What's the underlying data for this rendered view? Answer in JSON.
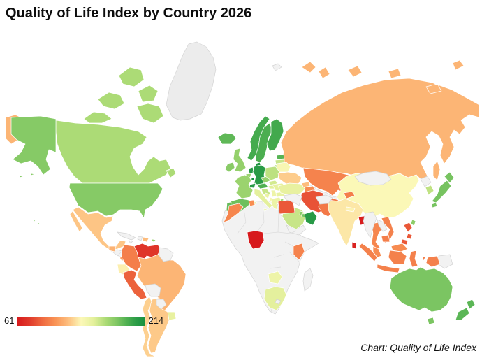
{
  "title": "Quality of Life Index by Country 2026",
  "caption": "Chart: Quality of Life Index",
  "legend": {
    "min_label": "61",
    "max_label": "214"
  },
  "chart_data": {
    "type": "choropleth",
    "title": "Quality of Life Index by Country 2026",
    "metric": "Quality of Life Index",
    "year": "2026",
    "legend_position": "bottom-left",
    "scale": {
      "min": 61,
      "max": 214,
      "no_data_color": "#f2f2f2",
      "no_data_border": "#d4d4d4",
      "stops": [
        {
          "t": 0.0,
          "color": "#d7191c"
        },
        {
          "t": 0.1,
          "color": "#e03a2b"
        },
        {
          "t": 0.2,
          "color": "#ef6a40"
        },
        {
          "t": 0.3,
          "color": "#f99355"
        },
        {
          "t": 0.4,
          "color": "#fdbe7e"
        },
        {
          "t": 0.5,
          "color": "#fcf8b8"
        },
        {
          "t": 0.6,
          "color": "#e3f09b"
        },
        {
          "t": 0.7,
          "color": "#a8d973"
        },
        {
          "t": 0.78,
          "color": "#7ec663"
        },
        {
          "t": 0.86,
          "color": "#4daf50"
        },
        {
          "t": 0.93,
          "color": "#2b9c47"
        },
        {
          "t": 1.0,
          "color": "#17903e"
        }
      ]
    },
    "countries": [
      {
        "id": "russia",
        "name": "Russia",
        "value": 119
      },
      {
        "id": "kazakhstan",
        "name": "Kazakhstan",
        "value": 101
      },
      {
        "id": "china",
        "name": "China",
        "value": 138
      },
      {
        "id": "canada",
        "name": "Canada",
        "value": 167
      },
      {
        "id": "united-states",
        "name": "United States",
        "value": 178
      },
      {
        "id": "mexico",
        "name": "Mexico",
        "value": 124
      },
      {
        "id": "guatemala",
        "name": "Guatemala",
        "value": 118
      },
      {
        "id": "costa-rica-panama",
        "name": "Costa Rica & Panama",
        "value": 110
      },
      {
        "id": "dominican-republic",
        "name": "Dominican Republic",
        "value": 121
      },
      {
        "id": "puerto-rico",
        "name": "Puerto Rico",
        "value": 172
      },
      {
        "id": "venezuela",
        "name": "Venezuela",
        "value": 74
      },
      {
        "id": "colombia",
        "name": "Colombia",
        "value": 99
      },
      {
        "id": "ecuador",
        "name": "Ecuador",
        "value": 135
      },
      {
        "id": "peru",
        "name": "Peru",
        "value": 89
      },
      {
        "id": "brazil",
        "name": "Brazil",
        "value": 119
      },
      {
        "id": "chile",
        "name": "Chile",
        "value": 127
      },
      {
        "id": "argentina",
        "name": "Argentina",
        "value": 125
      },
      {
        "id": "uruguay",
        "name": "Uruguay",
        "value": 150
      },
      {
        "id": "iceland",
        "name": "Iceland",
        "value": 188
      },
      {
        "id": "ireland",
        "name": "Ireland",
        "value": 177
      },
      {
        "id": "united-kingdom",
        "name": "United Kingdom",
        "value": 174
      },
      {
        "id": "norway",
        "name": "Norway",
        "value": 195
      },
      {
        "id": "sweden",
        "name": "Sweden",
        "value": 193
      },
      {
        "id": "finland",
        "name": "Finland",
        "value": 196
      },
      {
        "id": "denmark",
        "name": "Denmark",
        "value": 209
      },
      {
        "id": "estonia",
        "name": "Estonia",
        "value": 190
      },
      {
        "id": "latvia",
        "name": "Latvia",
        "value": 160
      },
      {
        "id": "lithuania",
        "name": "Lithuania",
        "value": 164
      },
      {
        "id": "netherlands",
        "name": "Netherlands",
        "value": 205
      },
      {
        "id": "belgium",
        "name": "Belgium",
        "value": 172
      },
      {
        "id": "luxembourg",
        "name": "Luxembourg",
        "value": 214
      },
      {
        "id": "germany",
        "name": "Germany",
        "value": 204
      },
      {
        "id": "france",
        "name": "France",
        "value": 172
      },
      {
        "id": "spain",
        "name": "Spain",
        "value": 184
      },
      {
        "id": "portugal",
        "name": "Portugal",
        "value": 186
      },
      {
        "id": "switzerland",
        "name": "Switzerland",
        "value": 205
      },
      {
        "id": "austria",
        "name": "Austria",
        "value": 192
      },
      {
        "id": "italy",
        "name": "Italy",
        "value": 152
      },
      {
        "id": "czechia",
        "name": "Czechia",
        "value": 173
      },
      {
        "id": "slovakia",
        "name": "Slovakia",
        "value": 157
      },
      {
        "id": "hungary",
        "name": "Hungary",
        "value": 153
      },
      {
        "id": "poland",
        "name": "Poland",
        "value": 163
      },
      {
        "id": "belarus",
        "name": "Belarus",
        "value": 140
      },
      {
        "id": "ukraine",
        "name": "Ukraine",
        "value": 126
      },
      {
        "id": "romania",
        "name": "Romania",
        "value": 151
      },
      {
        "id": "bulgaria",
        "name": "Bulgaria",
        "value": 149
      },
      {
        "id": "serbia",
        "name": "Serbia",
        "value": 146
      },
      {
        "id": "croatia-slovenia",
        "name": "Croatia & Slovenia",
        "value": 160
      },
      {
        "id": "bosnia",
        "name": "Bosnia and Herzegovina",
        "value": 147
      },
      {
        "id": "albania",
        "name": "Albania",
        "value": 142
      },
      {
        "id": "greece",
        "name": "Greece",
        "value": 147
      },
      {
        "id": "kyrgyzstan",
        "name": "Kyrgyzstan",
        "value": 99
      },
      {
        "id": "georgia",
        "name": "Georgia",
        "value": 122
      },
      {
        "id": "azerbaijan-armenia",
        "name": "Azerbaijan & Armenia",
        "value": 104
      },
      {
        "id": "turkey",
        "name": "Turkey",
        "value": 150
      },
      {
        "id": "iran",
        "name": "Iran",
        "value": 84
      },
      {
        "id": "israel",
        "name": "Israel",
        "value": 172
      },
      {
        "id": "jordan",
        "name": "Jordan",
        "value": 131
      },
      {
        "id": "saudi-arabia",
        "name": "Saudi Arabia",
        "value": 160
      },
      {
        "id": "qatar",
        "name": "Qatar",
        "value": 178
      },
      {
        "id": "uae",
        "name": "United Arab Emirates",
        "value": 183
      },
      {
        "id": "oman",
        "name": "Oman",
        "value": 205
      },
      {
        "id": "egypt",
        "name": "Egypt",
        "value": 86
      },
      {
        "id": "morocco",
        "name": "Morocco",
        "value": 102
      },
      {
        "id": "tunisia",
        "name": "Tunisia",
        "value": 105
      },
      {
        "id": "nigeria",
        "name": "Nigeria",
        "value": 61
      },
      {
        "id": "kenya",
        "name": "Kenya",
        "value": 101
      },
      {
        "id": "zambia",
        "name": "Zambia",
        "value": 146
      },
      {
        "id": "south-africa",
        "name": "South Africa",
        "value": 152
      },
      {
        "id": "pakistan",
        "name": "Pakistan",
        "value": 97
      },
      {
        "id": "india",
        "name": "India",
        "value": 133
      },
      {
        "id": "nepal",
        "name": "Nepal",
        "value": 136
      },
      {
        "id": "bangladesh",
        "name": "Bangladesh",
        "value": 63
      },
      {
        "id": "sri-lanka",
        "name": "Sri Lanka",
        "value": 65
      },
      {
        "id": "south-korea",
        "name": "South Korea",
        "value": 162
      },
      {
        "id": "japan",
        "name": "Japan",
        "value": 182
      },
      {
        "id": "taiwan",
        "name": "Taiwan",
        "value": 176
      },
      {
        "id": "thailand",
        "name": "Thailand",
        "value": 102
      },
      {
        "id": "vietnam",
        "name": "Vietnam",
        "value": 100
      },
      {
        "id": "cambodia",
        "name": "Cambodia",
        "value": 99
      },
      {
        "id": "malaysia",
        "name": "Malaysia",
        "value": 104
      },
      {
        "id": "indonesia",
        "name": "Indonesia",
        "value": 100
      },
      {
        "id": "philippines",
        "name": "Philippines",
        "value": 86
      },
      {
        "id": "australia",
        "name": "Australia",
        "value": 181
      },
      {
        "id": "new-zealand",
        "name": "New Zealand",
        "value": 189
      }
    ],
    "no_data_regions": [
      "Greenland",
      "Most of Africa",
      "Madagascar",
      "Cuba",
      "Haiti",
      "Jamaica",
      "Guyana & Suriname",
      "Bolivia",
      "Paraguay",
      "Mongolia",
      "North Korea",
      "Myanmar",
      "Laos",
      "Afghanistan",
      "Uzbekistan & Turkmenistan",
      "Syria & Iraq",
      "Yemen",
      "Papua New Guinea",
      "Svalbard",
      "Lesotho",
      "Parts of Central America"
    ]
  }
}
